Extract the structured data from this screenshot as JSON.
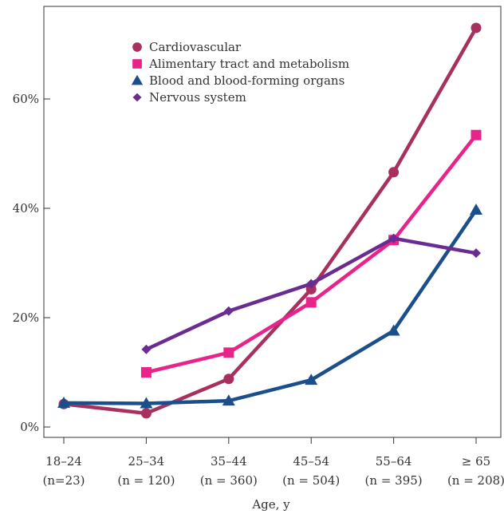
{
  "chart_data": {
    "type": "line",
    "xlabel": "Age, y",
    "ylabel": "",
    "ylim": [
      0,
      75
    ],
    "yticks": [
      0,
      20,
      40,
      60
    ],
    "ytick_labels": [
      "0%",
      "20%",
      "40%",
      "60%"
    ],
    "categories": [
      {
        "label": "18–24",
        "n": "(n=23)"
      },
      {
        "label": "25–34",
        "n": "(n = 120)"
      },
      {
        "label": "35–44",
        "n": "(n = 360)"
      },
      {
        "label": "45–54",
        "n": "(n = 504)"
      },
      {
        "label": "55–64",
        "n": "(n = 395)"
      },
      {
        "label": "≥ 65",
        "n": "(n = 208)"
      }
    ],
    "grid": false,
    "legend_position": "top-left",
    "series": [
      {
        "name": "Cardiovascular",
        "marker": "circle",
        "color": "#a8305f",
        "values": [
          4.2,
          2.5,
          8.8,
          25.2,
          46.6,
          73
        ]
      },
      {
        "name": "Alimentary tract and metabolism",
        "marker": "square",
        "color": "#e8238a",
        "values": [
          null,
          10,
          13.6,
          22.8,
          34.2,
          53.4
        ]
      },
      {
        "name": "Blood and blood-forming organs",
        "marker": "triangle",
        "color": "#1a4f8c",
        "values": [
          4.4,
          4.3,
          4.8,
          8.6,
          17.6,
          39.7
        ]
      },
      {
        "name": "Nervous system",
        "marker": "diamond",
        "color": "#6a2c91",
        "values": [
          null,
          14.2,
          21.2,
          26.2,
          34.5,
          31.8
        ]
      }
    ]
  }
}
